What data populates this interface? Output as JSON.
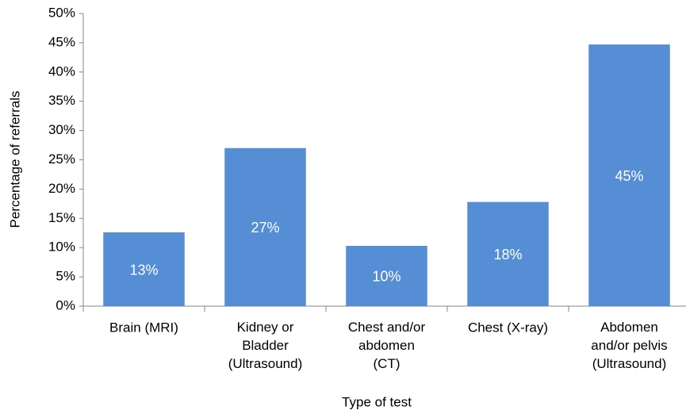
{
  "chart_data": {
    "type": "bar",
    "x_label": "Type of test",
    "y_label": "Percentage of referrals",
    "categories": [
      "Brain (MRI)",
      "Kidney or\nBladder\n(Ultrasound)",
      "Chest and/or\nabdomen\n(CT)",
      "Chest (X-ray)",
      "Abdomen\nand/or pelvis\n(Ultrasound)"
    ],
    "values": [
      12.6,
      27,
      10.3,
      17.8,
      44.7
    ],
    "value_labels": [
      "13%",
      "27%",
      "10%",
      "18%",
      "45%"
    ],
    "color": "#558ed5",
    "ylim": [
      0,
      50
    ],
    "yticks": [
      {
        "value": 0,
        "label": "0%"
      },
      {
        "value": 5,
        "label": "5%"
      },
      {
        "value": 10,
        "label": "10%"
      },
      {
        "value": 15,
        "label": "15%"
      },
      {
        "value": 20,
        "label": "20%"
      },
      {
        "value": 25,
        "label": "25%"
      },
      {
        "value": 30,
        "label": "30%"
      },
      {
        "value": 35,
        "label": "35%"
      },
      {
        "value": 40,
        "label": "40%"
      },
      {
        "value": 45,
        "label": "45%"
      },
      {
        "value": 50,
        "label": "50%"
      }
    ],
    "grid": false
  }
}
